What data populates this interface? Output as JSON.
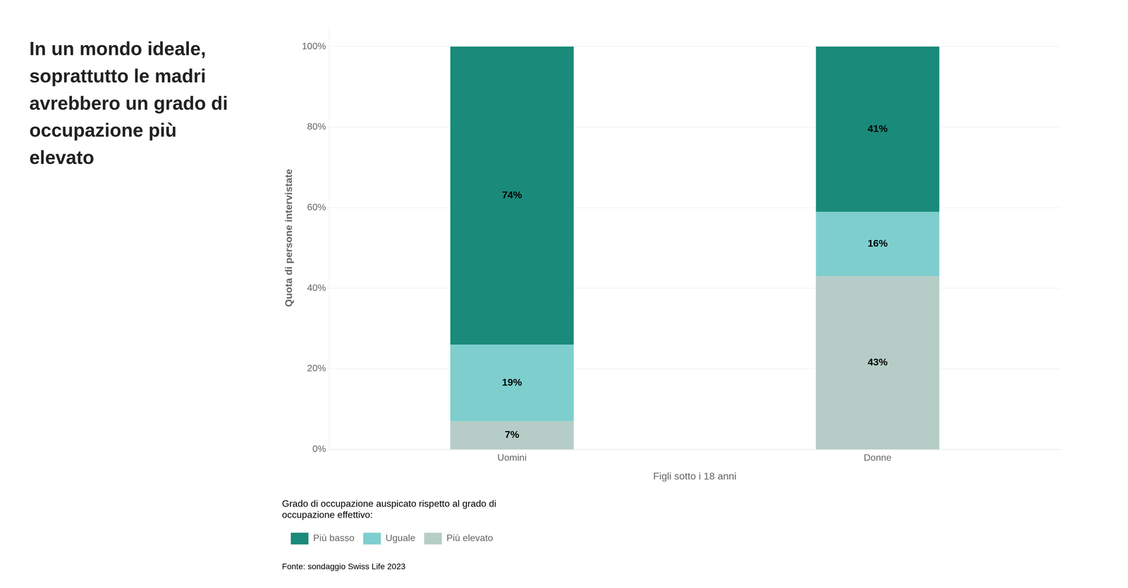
{
  "chart_data": {
    "type": "bar",
    "stacked": true,
    "title": [
      "In un mondo ideale,",
      "soprattutto le madri",
      "avrebbero un grado di",
      "occupazione più",
      "elevato"
    ],
    "categories": [
      "Uomini",
      "Donne"
    ],
    "series": [
      {
        "name": "Più elevato",
        "color": "#b5cdc6",
        "values": [
          7,
          43
        ],
        "value_labels": [
          "7%",
          "43%"
        ]
      },
      {
        "name": "Uguale",
        "color": "#7ecece",
        "values": [
          19,
          16
        ],
        "value_labels": [
          "19%",
          "16%"
        ]
      },
      {
        "name": "Più basso",
        "color": "#1a8a7a",
        "values": [
          74,
          41
        ],
        "value_labels": [
          "74%",
          "41%"
        ]
      }
    ],
    "xlabel": "Figli sotto i 18 anni",
    "ylabel": "Quota di persone intervistate",
    "ylim": [
      0,
      105
    ],
    "yticks": [
      {
        "value": 0,
        "label": "0%"
      },
      {
        "value": 20,
        "label": "20%"
      },
      {
        "value": 40,
        "label": "40%"
      },
      {
        "value": 60,
        "label": "60%"
      },
      {
        "value": 80,
        "label": "80%"
      },
      {
        "value": 100,
        "label": "100%"
      }
    ],
    "grid": true,
    "data_labels": true,
    "legend": "bottom",
    "legend_title": "Grado di occupazione auspicato rispetto al grado di\noccupazione effettivo:",
    "source": "Fonte: sondaggio Swiss Life 2023"
  }
}
